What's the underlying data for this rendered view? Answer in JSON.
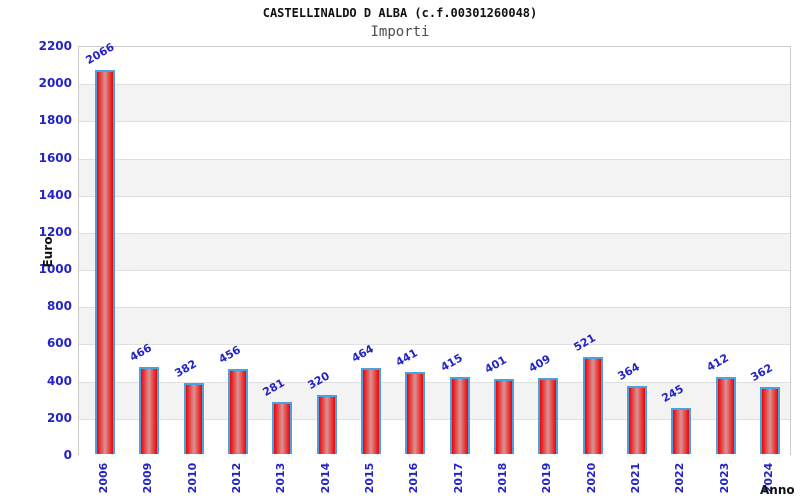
{
  "header": {
    "title": "CASTELLINALDO D ALBA (c.f.00301260048)",
    "subtitle": "Importi"
  },
  "chart_data": {
    "type": "bar",
    "categories": [
      "2006",
      "2009",
      "2010",
      "2012",
      "2013",
      "2014",
      "2015",
      "2016",
      "2017",
      "2018",
      "2019",
      "2020",
      "2021",
      "2022",
      "2023",
      "2024"
    ],
    "values": [
      2066,
      466,
      382,
      456,
      281,
      320,
      464,
      441,
      415,
      401,
      409,
      521,
      364,
      245,
      412,
      362
    ],
    "title": "CASTELLINALDO D ALBA (c.f.00301260048)",
    "subtitle": "Importi",
    "xlabel": "Anno",
    "ylabel": "Euro",
    "ylim": [
      0,
      2200
    ],
    "ytick_step": 200,
    "grid": true,
    "bands": true,
    "legend": "none",
    "value_labels": true
  },
  "colors": {
    "label_blue": "#2424c4",
    "band_gray": "#f3f3f3",
    "gridline": "#e0e0e0",
    "plot_border": "#cccccc",
    "bar_border": "#4da0e0",
    "bar_red_edge": "#ee1c1c",
    "bar_red_center": "#d89494",
    "title_color": "#111111",
    "subtitle_color": "#4d4d4d"
  }
}
